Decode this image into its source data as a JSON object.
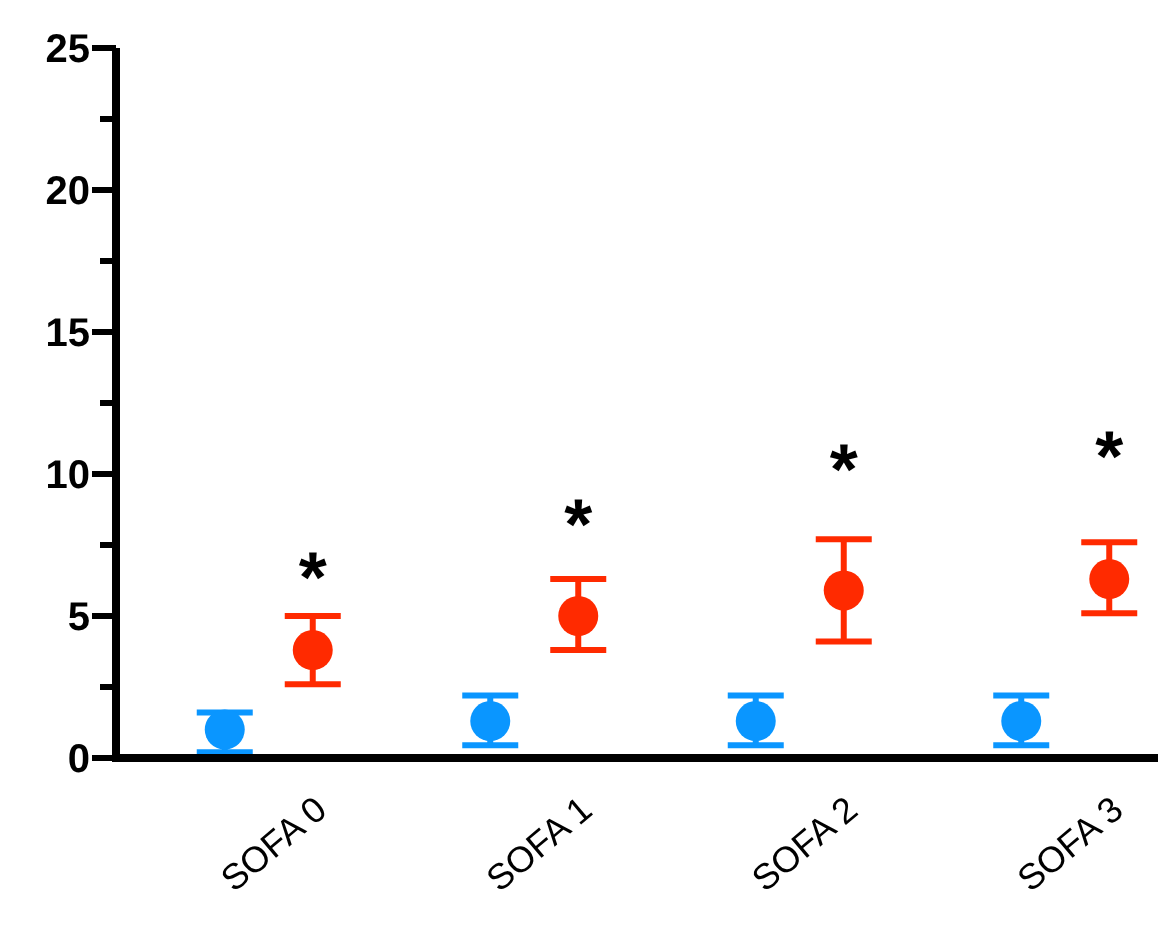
{
  "chart_data": {
    "type": "scatter",
    "categories": [
      "SOFA 0",
      "SOFA 1",
      "SOFA 2",
      "SOFA 3"
    ],
    "series": [
      {
        "color": "#0a96ff",
        "values": [
          1.0,
          1.3,
          1.3,
          1.3
        ],
        "errors": [
          [
            0.2,
            1.6
          ],
          [
            0.45,
            2.2
          ],
          [
            0.45,
            2.2
          ],
          [
            0.45,
            2.2
          ]
        ]
      },
      {
        "color": "#ff2a00",
        "values": [
          3.8,
          5.0,
          5.9,
          6.3
        ],
        "errors": [
          [
            2.6,
            5.0
          ],
          [
            3.8,
            6.3
          ],
          [
            4.1,
            7.7
          ],
          [
            5.1,
            7.6
          ]
        ]
      }
    ],
    "annotations": [
      "*",
      "*",
      "*",
      "*"
    ],
    "ylim": [
      0,
      25
    ],
    "yticks": [
      0,
      {
        "value": 2.5,
        "label": null
      },
      5,
      {
        "value": 7.5,
        "label": null
      },
      10,
      {
        "value": 12.5,
        "label": null
      },
      15,
      {
        "value": 17.5,
        "label": null
      },
      20,
      {
        "value": 22.5,
        "label": null
      },
      25
    ],
    "marker": "circle"
  }
}
